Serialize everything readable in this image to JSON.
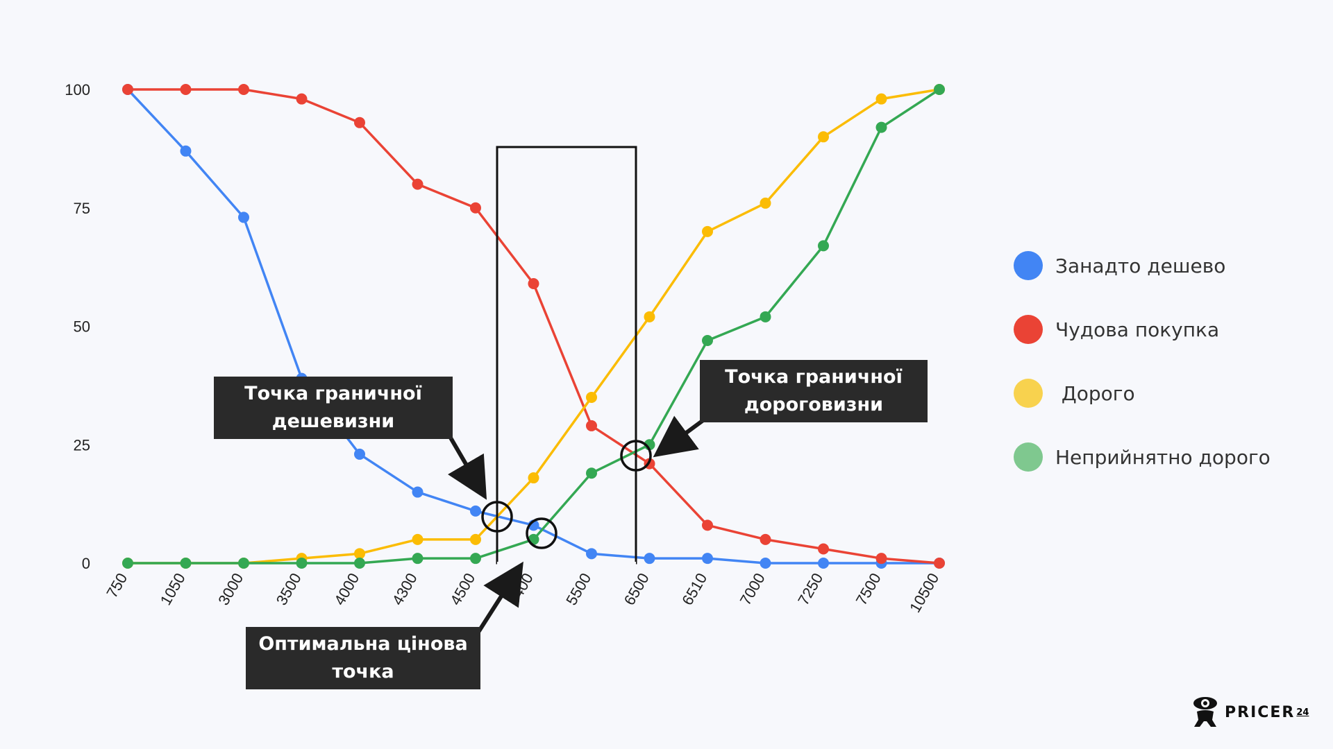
{
  "chart_data": {
    "type": "line",
    "categories": [
      "750",
      "1050",
      "3000",
      "3500",
      "4000",
      "4300",
      "4500",
      "5400",
      "5500",
      "6500",
      "6510",
      "7000",
      "7250",
      "7500",
      "10500"
    ],
    "ylim": [
      0,
      100
    ],
    "yticks": [
      0,
      25,
      50,
      75,
      100
    ],
    "grid": false,
    "legend_position": "right",
    "series": [
      {
        "name": "Занадто дешево",
        "color": "#4285f4",
        "values": [
          100,
          87,
          73,
          39,
          23,
          15,
          11,
          8,
          2,
          1,
          1,
          0,
          0,
          0,
          0
        ]
      },
      {
        "name": "Чудова покупка",
        "color": "#ea4335",
        "values": [
          100,
          100,
          100,
          98,
          93,
          80,
          75,
          59,
          29,
          21,
          8,
          5,
          3,
          1,
          0
        ]
      },
      {
        "name": " Дорого",
        "color": "#fbbc04",
        "values": [
          0,
          0,
          0,
          1,
          2,
          5,
          5,
          18,
          35,
          52,
          70,
          76,
          90,
          98,
          100
        ]
      },
      {
        "name": "Неприйнятно дорого",
        "color": "#34a853",
        "values": [
          0,
          0,
          0,
          0,
          0,
          1,
          1,
          5,
          19,
          25,
          47,
          52,
          67,
          92,
          100
        ]
      }
    ],
    "annotations": [
      {
        "label": "Точка граничної дешевизни"
      },
      {
        "label": "Точка граничної дороговизни"
      },
      {
        "label": "Оптимальна цінова точка"
      }
    ]
  },
  "legend_colors": [
    "#4285f4",
    "#ea4335",
    "#f8d24e",
    "#7fc88f"
  ],
  "callouts": {
    "cheap_line1": "Точка граничної",
    "cheap_line2": "дешевизни",
    "expensive_line1": "Точка граничної",
    "expensive_line2": "дороговизни",
    "optimal_line1": "Оптимальна цінова",
    "optimal_line2": "точка"
  },
  "logo": {
    "text": "PRICER",
    "superscript": "24"
  }
}
